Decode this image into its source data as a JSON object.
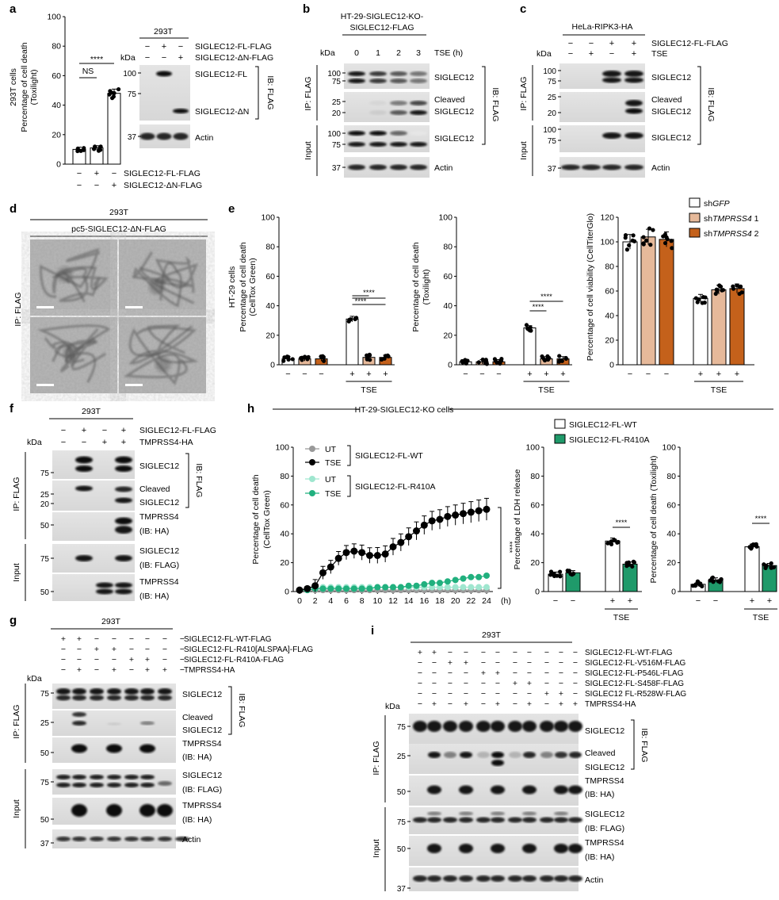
{
  "a": {
    "letter": "a",
    "cell_line": "293T",
    "ylabel_1": "293T cells",
    "ylabel_2": "Percentage of cell death",
    "ylabel_3": "(Toxilight)",
    "yticks": [
      "0",
      "20",
      "40",
      "60",
      "80",
      "100"
    ],
    "ylim": [
      0,
      100
    ],
    "means": [
      10,
      11,
      48
    ],
    "sig_ns": "NS",
    "sig_star": "****",
    "row1_label": "SIGLEC12-FL-FLAG",
    "row2_label": "SIGLEC12-ΔN-FLAG",
    "row1": [
      "−",
      "+",
      "−"
    ],
    "row2": [
      "−",
      "−",
      "+"
    ],
    "blot_row1": [
      "−",
      "+",
      "−"
    ],
    "blot_row2": [
      "−",
      "−",
      "+"
    ],
    "kda": "kDa",
    "mw": [
      "100",
      "75",
      "37"
    ],
    "band_fl": "SIGLEC12-FL",
    "band_dn": "SIGLEC12-ΔN",
    "band_actin": "Actin",
    "ib": "IB: FLAG"
  },
  "b": {
    "letter": "b",
    "title_1": "HT-29-SIGLEC12-KO-",
    "title_2": "SIGLEC12-FLAG",
    "kda": "kDa",
    "times": [
      "0",
      "1",
      "2",
      "3"
    ],
    "tse": "TSE (h)",
    "mw": [
      "100",
      "75",
      "25",
      "20",
      "100",
      "75",
      "37"
    ],
    "ip": "IP: FLAG",
    "input": "Input",
    "band_s12": "SIGLEC12",
    "band_cleaved_1": "Cleaved",
    "band_cleaved_2": "SIGLEC12",
    "band_s12_input": "SIGLEC12",
    "band_actin": "Actin",
    "ib": "IB: FLAG"
  },
  "c": {
    "letter": "c",
    "title": "HeLa-RIPK3-HA",
    "row1_label": "SIGLEC12-FL-FLAG",
    "row2_label": "TSE",
    "kda": "kDa",
    "row1": [
      "−",
      "−",
      "+",
      "+"
    ],
    "row2": [
      "−",
      "+",
      "−",
      "+"
    ],
    "mw": [
      "100",
      "75",
      "25",
      "20",
      "100",
      "75",
      "37"
    ],
    "ip": "IP: FLAG",
    "input": "Input",
    "band_s12": "SIGLEC12",
    "band_cleaved_1": "Cleaved",
    "band_cleaved_2": "SIGLEC12",
    "band_s12_input": "SIGLEC12",
    "band_actin": "Actin",
    "ib": "IB: FLAG"
  },
  "d": {
    "letter": "d",
    "cell_line": "293T",
    "construct": "pc5-SIGLEC12-ΔN-FLAG",
    "ip": "IP: FLAG"
  },
  "e": {
    "letter": "e",
    "legend": [
      {
        "prefix": "sh",
        "italic": "GFP",
        "suffix": "",
        "color": "#ffffff"
      },
      {
        "prefix": "sh",
        "italic": "TMPRSS4",
        "suffix": " 1",
        "color": "#e6b99a"
      },
      {
        "prefix": "sh",
        "italic": "TMPRSS4",
        "suffix": " 2",
        "color": "#c4611b"
      }
    ],
    "p1": {
      "ylabel_1": "HT-29 cells",
      "ylabel_2": "Percentage of cell death",
      "ylabel_3": "(CellTox Green)",
      "means": [
        4,
        4,
        4,
        31,
        5,
        5
      ],
      "yticks": [
        "0",
        "20",
        "40",
        "60",
        "80",
        "100"
      ],
      "xlabel": "TSE",
      "star": "****"
    },
    "p2": {
      "ylabel_1": "Percentage of cell death",
      "ylabel_2": "(Toxilight)",
      "means": [
        2,
        2,
        2,
        25,
        4,
        4
      ],
      "yticks": [
        "0",
        "20",
        "40",
        "60",
        "80",
        "100"
      ],
      "xlabel": "TSE",
      "star": "****"
    },
    "p3": {
      "ylabel_1": "Percentage of cell viability (CellTiterGlo)",
      "means": [
        100,
        104,
        102,
        54,
        61,
        62
      ],
      "yticks": [
        "0",
        "20",
        "40",
        "60",
        "80",
        "100",
        "120"
      ],
      "xlabel": "TSE"
    },
    "row": [
      "−",
      "−",
      "−",
      "+",
      "+",
      "+"
    ]
  },
  "f": {
    "letter": "f",
    "cell_line": "293T",
    "row1_label": "SIGLEC12-FL-FLAG",
    "row2_label": "TMPRSS4-HA",
    "kda": "kDa",
    "row1": [
      "−",
      "+",
      "−",
      "+"
    ],
    "row2": [
      "−",
      "−",
      "+",
      "+"
    ],
    "mw": [
      "75",
      "25",
      "20",
      "50",
      "75",
      "50"
    ],
    "ip": "IP: FLAG",
    "input": "Input",
    "band_s12": "SIGLEC12",
    "band_cleaved_1": "Cleaved",
    "band_cleaved_2": "SIGLEC12",
    "band_tm_1": "TMPRSS4",
    "band_tm_2": "(IB: HA)",
    "band_s12in_1": "SIGLEC12",
    "band_s12in_2": "(IB: FLAG)",
    "band_tmin_1": "TMPRSS4",
    "band_tmin_2": "(IB: HA)",
    "ib": "IB: FLAG"
  },
  "g": {
    "letter": "g",
    "cell_line": "293T",
    "labels": [
      "SIGLEC12-FL-WT-FLAG",
      "SIGLEC12-FL-R410[ALSPAA]-FLAG",
      "SIGLEC12-FL-R410A-FLAG",
      "TMPRSS4-HA"
    ],
    "rows": [
      [
        "+",
        "+",
        "−",
        "−",
        "−",
        "−",
        "−",
        "−"
      ],
      [
        "−",
        "−",
        "+",
        "+",
        "−",
        "−",
        "−",
        "−"
      ],
      [
        "−",
        "−",
        "−",
        "−",
        "+",
        "+",
        "−",
        "−"
      ],
      [
        "−",
        "+",
        "−",
        "+",
        "−",
        "+",
        "+",
        "−"
      ]
    ],
    "kda": "kDa",
    "mw": [
      "75",
      "25",
      "50",
      "75",
      "50",
      "37"
    ],
    "ip": "IP: FLAG",
    "input": "Input",
    "band_s12": "SIGLEC12",
    "band_cleaved_1": "Cleaved",
    "band_cleaved_2": "SIGLEC12",
    "band_tm_1": "TMPRSS4",
    "band_tm_2": "(IB: HA)",
    "band_s12in_1": "SIGLEC12",
    "band_s12in_2": "(IB: FLAG)",
    "band_tmin_1": "TMPRSS4",
    "band_tmin_2": "(IB: HA)",
    "band_actin": "Actin",
    "ib": "IB: FLAG"
  },
  "h": {
    "letter": "h",
    "title": "HT-29-SIGLEC12-KO cells",
    "legend_top": [
      {
        "label": "UT",
        "group": "SIGLEC12-FL-WT",
        "color": "#999999"
      },
      {
        "label": "TSE",
        "color": "#000000"
      },
      {
        "label": "UT",
        "group": "SIGLEC12-FL-R410A",
        "color": "#9fe6cf"
      },
      {
        "label": "TSE",
        "color": "#21b07e"
      }
    ],
    "group_wt": "SIGLEC12-FL-WT",
    "group_r": "SIGLEC12-FL-R410A",
    "legend_bar": [
      {
        "label": "SIGLEC12-FL-WT",
        "color": "#ffffff"
      },
      {
        "label": "SIGLEC12-FL-R410A",
        "color": "#1f9a6a"
      }
    ],
    "time": {
      "ylabel_1": "Percentage of cell death",
      "ylabel_2": "(CellTox Green)",
      "x": [
        0,
        1,
        2,
        3,
        4,
        5,
        6,
        7,
        8,
        9,
        10,
        11,
        12,
        13,
        14,
        15,
        16,
        17,
        18,
        19,
        20,
        21,
        22,
        23,
        24
      ],
      "xticks": [
        "0",
        "2",
        "4",
        "6",
        "8",
        "10",
        "12",
        "14",
        "16",
        "18",
        "20",
        "22",
        "24"
      ],
      "xunit": "(h)",
      "yticks": [
        "0",
        "20",
        "40",
        "60",
        "80",
        "100"
      ],
      "wt_tse": [
        1,
        2,
        4,
        13,
        17,
        23,
        27,
        28,
        27,
        25,
        25,
        26,
        31,
        34,
        38,
        42,
        46,
        49,
        50,
        52,
        53,
        54,
        55,
        56,
        57
      ],
      "wt_ut": [
        1,
        1,
        1,
        1,
        1,
        1,
        1,
        1,
        1,
        1,
        1,
        1,
        1,
        1,
        1,
        1,
        1,
        1,
        1,
        1,
        1,
        1,
        1,
        1,
        1
      ],
      "r_tse": [
        1,
        1,
        2,
        2,
        2,
        2,
        2,
        2,
        2,
        2,
        3,
        3,
        3,
        3,
        4,
        4,
        5,
        6,
        6,
        7,
        8,
        9,
        10,
        10,
        11
      ],
      "r_ut": [
        1,
        2,
        3,
        3,
        3,
        3,
        3,
        3,
        3,
        3,
        3,
        3,
        3,
        3,
        3,
        3,
        3,
        3,
        3,
        3,
        3,
        3,
        3,
        3,
        3
      ],
      "star": "****"
    },
    "ldh": {
      "ylabel": "Percentage of LDH release",
      "means": [
        12,
        13,
        35,
        19
      ],
      "yticks": [
        "0",
        "20",
        "40",
        "60",
        "80",
        "100"
      ],
      "xlabel": "TSE",
      "star": "****",
      "row": [
        "−",
        "−",
        "+",
        "+"
      ]
    },
    "tox": {
      "ylabel": "Percentage of cell death (Toxilight)",
      "means": [
        5,
        8,
        31,
        18
      ],
      "yticks": [
        "0",
        "20",
        "40",
        "60",
        "80",
        "100"
      ],
      "xlabel": "TSE",
      "star": "****",
      "row": [
        "−",
        "−",
        "+",
        "+"
      ]
    }
  },
  "i": {
    "letter": "i",
    "cell_line": "293T",
    "labels": [
      "SIGLEC12-FL-WT-FLAG",
      "SIGLEC12-FL-V516M-FLAG",
      "SIGLEC12-FL-P546L-FLAG",
      "SIGLEC12-FL-S458F-FLAG",
      "SIGLEC12 FL-R528W-FLAG",
      "TMPRSS4-HA"
    ],
    "rows": [
      [
        "+",
        "+",
        "−",
        "−",
        "−",
        "−",
        "−",
        "−",
        "−",
        "−",
        "−"
      ],
      [
        "−",
        "−",
        "+",
        "+",
        "−",
        "−",
        "−",
        "−",
        "−",
        "−",
        "−"
      ],
      [
        "−",
        "−",
        "−",
        "−",
        "+",
        "+",
        "−",
        "−",
        "−",
        "−",
        "−"
      ],
      [
        "−",
        "−",
        "−",
        "−",
        "−",
        "−",
        "+",
        "+",
        "−",
        "−",
        "−"
      ],
      [
        "−",
        "−",
        "−",
        "−",
        "−",
        "−",
        "−",
        "−",
        "+",
        "+",
        "−"
      ],
      [
        "−",
        "+",
        "−",
        "+",
        "−",
        "+",
        "−",
        "+",
        "−",
        "+",
        "+"
      ]
    ],
    "kda": "kDa",
    "mw": [
      "75",
      "25",
      "50",
      "75",
      "50",
      "37"
    ],
    "ip": "IP: FLAG",
    "input": "Input",
    "band_s12": "SIGLEC12",
    "band_cleaved_1": "Cleaved",
    "band_cleaved_2": "SIGLEC12",
    "band_tm_1": "TMPRSS4",
    "band_tm_2": "(IB: HA)",
    "band_s12in_1": "SIGLEC12",
    "band_s12in_2": "(IB: FLAG)",
    "band_tmin_1": "TMPRSS4",
    "band_tmin_2": "(IB: HA)",
    "band_actin": "Actin",
    "ib": "IB: FLAG"
  }
}
